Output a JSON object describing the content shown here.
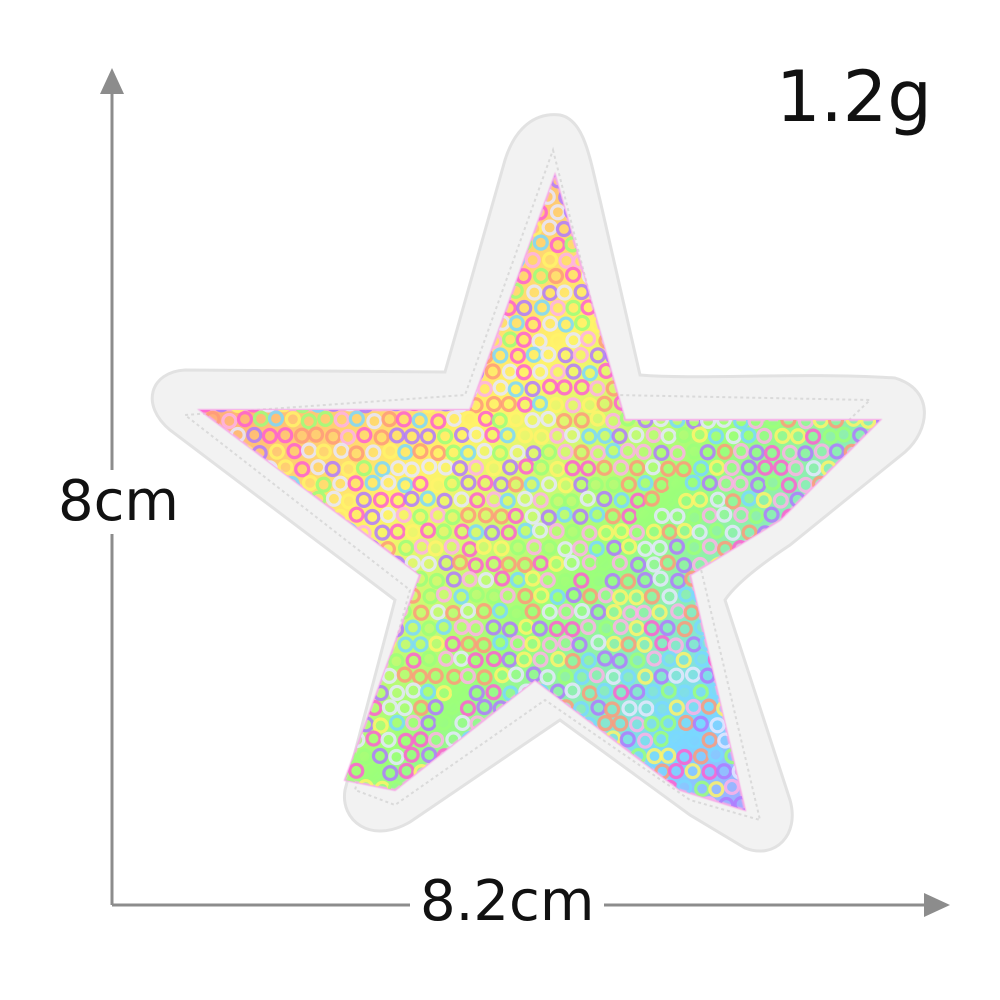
{
  "product": {
    "weight_label": "1.2g",
    "height_label": "8cm",
    "width_label": "8.2cm"
  },
  "colors": {
    "arrow": "#8c8c8c",
    "text": "#111111",
    "patch_border": "#f1f1f1",
    "sequin_palette": [
      "#ff5fd2",
      "#ff9a7a",
      "#fff36a",
      "#9cff7a",
      "#7ad8ff",
      "#b07aff",
      "#e6e6ff",
      "#ffb0e8"
    ]
  },
  "icons": {
    "vertical_arrow": "arrow-up-icon",
    "horizontal_arrow": "arrow-right-icon"
  }
}
